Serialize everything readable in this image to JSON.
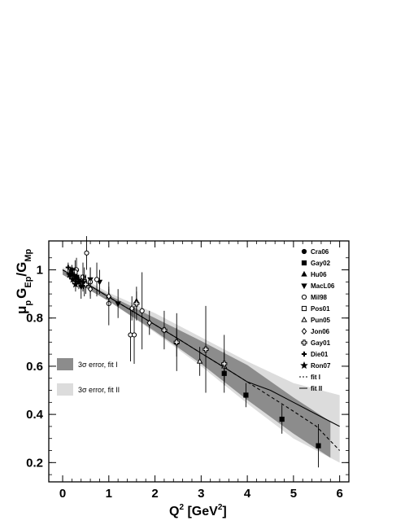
{
  "chart_data": {
    "type": "scatter",
    "title": "",
    "xlabel": {
      "main": "Q",
      "sup": "2",
      "unit_open": " [GeV",
      "unit_sup": "2",
      "unit_close": "]"
    },
    "ylabel": {
      "mu": "μ",
      "mu_sub": "p",
      "G1": "G",
      "G1_sub": "Ep",
      "slash": "/G",
      "G2_sub": "Mp"
    },
    "xlim": [
      -0.3,
      6.2
    ],
    "ylim": [
      0.12,
      1.12
    ],
    "x_ticks": [
      0,
      1,
      2,
      3,
      4,
      5,
      6
    ],
    "x_tick_labels": [
      "0",
      "1",
      "2",
      "3",
      "4",
      "5",
      "6"
    ],
    "y_ticks": [
      0.2,
      0.4,
      0.6,
      0.8,
      1.0
    ],
    "y_tick_labels": [
      "0.2",
      "0.4",
      "0.6",
      "0.8",
      "1"
    ],
    "grid": false,
    "legend_position": "top-right",
    "colors": {
      "band_fit1": "#8c8c8c",
      "band_fit2": "#dcdcdc",
      "marker": "#000000"
    },
    "series": [
      {
        "name": "Cra06",
        "marker": "filled-circle",
        "points": [
          [
            0.17,
            0.98,
            0.02
          ],
          [
            0.2,
            1.0,
            0.02
          ],
          [
            0.25,
            0.99,
            0.02
          ],
          [
            0.3,
            0.97,
            0.02
          ]
        ]
      },
      {
        "name": "Gay02",
        "marker": "filled-square",
        "points": [
          [
            3.5,
            0.57,
            0.05
          ],
          [
            3.97,
            0.48,
            0.05
          ],
          [
            4.75,
            0.38,
            0.06
          ],
          [
            5.54,
            0.27,
            0.09
          ]
        ]
      },
      {
        "name": "Hu06",
        "marker": "filled-triangle",
        "points": [
          [
            1.0,
            0.89,
            0.03
          ],
          [
            1.6,
            0.87,
            0.04
          ]
        ]
      },
      {
        "name": "MacL06",
        "marker": "filled-triangle-down",
        "points": [
          [
            0.3,
            0.97,
            0.04
          ],
          [
            0.4,
            0.93,
            0.05
          ],
          [
            0.6,
            0.96,
            0.05
          ],
          [
            0.8,
            0.95,
            0.05
          ],
          [
            1.2,
            0.86,
            0.06
          ]
        ]
      },
      {
        "name": "Mil98",
        "marker": "open-circle",
        "points": [
          [
            0.3,
            1.0,
            0.05
          ],
          [
            0.44,
            0.97,
            0.06
          ],
          [
            0.52,
            1.07,
            0.07
          ],
          [
            0.6,
            0.95,
            0.06
          ],
          [
            0.74,
            0.96,
            0.07
          ],
          [
            1.0,
            0.86,
            0.09
          ],
          [
            1.47,
            0.73,
            0.11
          ],
          [
            1.55,
            0.73,
            0.12
          ],
          [
            1.72,
            0.83,
            0.16
          ]
        ]
      },
      {
        "name": "Pos01",
        "marker": "open-square",
        "points": [
          [
            0.27,
            0.99,
            0.05
          ],
          [
            0.47,
            0.95,
            0.06
          ]
        ]
      },
      {
        "name": "Pun05",
        "marker": "open-triangle",
        "points": [
          [
            2.47,
            0.7,
            0.06
          ],
          [
            2.97,
            0.62,
            0.06
          ],
          [
            3.5,
            0.6,
            0.06
          ]
        ]
      },
      {
        "name": "Jon06",
        "marker": "open-diamond",
        "points": [
          [
            0.6,
            0.92,
            0.04
          ],
          [
            1.0,
            0.89,
            0.04
          ],
          [
            1.5,
            0.84,
            0.05
          ],
          [
            1.88,
            0.78,
            0.05
          ]
        ]
      },
      {
        "name": "Gay01",
        "marker": "open-cross",
        "points": [
          [
            0.5,
            0.94,
            0.04
          ],
          [
            1.6,
            0.86,
            0.07
          ],
          [
            2.2,
            0.75,
            0.08
          ],
          [
            2.47,
            0.7,
            0.12
          ],
          [
            3.1,
            0.67,
            0.18
          ],
          [
            3.5,
            0.61,
            0.12
          ]
        ]
      },
      {
        "name": "Die01",
        "marker": "filled-cross",
        "points": [
          [
            0.12,
            1.01,
            0.02
          ],
          [
            0.2,
            1.0,
            0.02
          ],
          [
            0.25,
            0.98,
            0.02
          ],
          [
            0.35,
            0.96,
            0.02
          ],
          [
            0.45,
            0.95,
            0.03
          ]
        ]
      },
      {
        "name": "Ron07",
        "marker": "star",
        "points": [
          [
            0.15,
            0.98,
            0.02
          ],
          [
            0.22,
            0.96,
            0.02
          ],
          [
            0.28,
            0.94,
            0.03
          ],
          [
            0.35,
            0.95,
            0.03
          ]
        ]
      }
    ],
    "fits": [
      {
        "name": "fit I",
        "style": "dashed",
        "x": [
          0,
          0.5,
          1,
          1.5,
          2,
          2.5,
          3,
          3.5,
          4,
          4.5,
          5,
          5.5,
          6
        ],
        "y": [
          1.0,
          0.945,
          0.887,
          0.83,
          0.772,
          0.714,
          0.654,
          0.595,
          0.535,
          0.474,
          0.413,
          0.35,
          0.25
        ]
      },
      {
        "name": "fit II",
        "style": "solid",
        "x": [
          0,
          0.5,
          1,
          1.5,
          2,
          2.5,
          3,
          3.5,
          4,
          4.5,
          5,
          5.5,
          6
        ],
        "y": [
          1.0,
          0.945,
          0.887,
          0.83,
          0.772,
          0.714,
          0.654,
          0.595,
          0.535,
          0.5,
          0.45,
          0.4,
          0.35
        ]
      }
    ],
    "error_bands": [
      {
        "name": "3σ error, fit I",
        "fill": "band_fit1",
        "x": [
          0,
          1,
          2,
          3,
          4,
          5,
          5.8
        ],
        "lower": [
          0.98,
          0.87,
          0.745,
          0.61,
          0.46,
          0.32,
          0.22
        ],
        "upper": [
          1.0,
          0.895,
          0.8,
          0.705,
          0.605,
          0.47,
          0.37
        ]
      },
      {
        "name": "3σ error, fit II",
        "fill": "band_fit2",
        "x": [
          0,
          1,
          2,
          3,
          4,
          5,
          6
        ],
        "lower": [
          0.99,
          0.87,
          0.74,
          0.6,
          0.445,
          0.3,
          0.2
        ],
        "upper": [
          1.01,
          0.905,
          0.82,
          0.72,
          0.62,
          0.53,
          0.48
        ]
      }
    ]
  }
}
